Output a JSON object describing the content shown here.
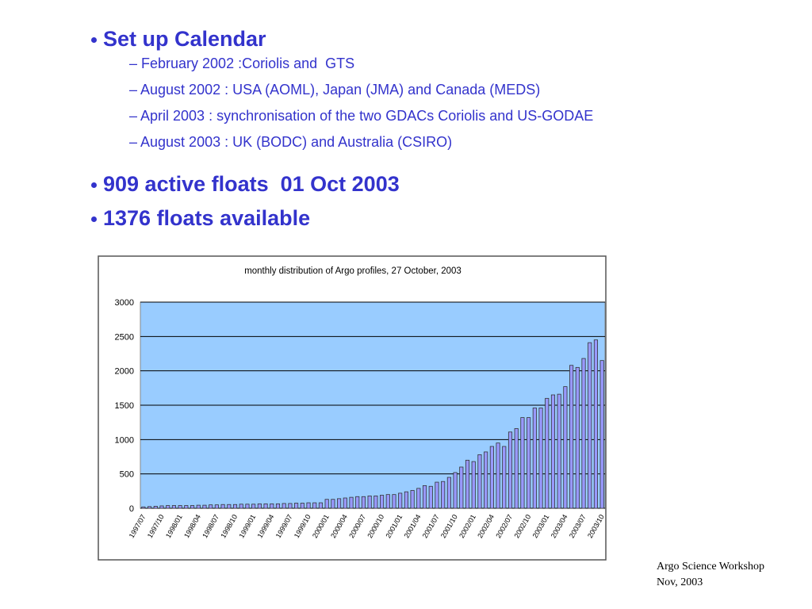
{
  "bullets": [
    {
      "text": "Set up Calendar",
      "sub": [
        "– February 2002 :Coriolis and  GTS",
        "– August 2002 : USA (AOML), Japan (JMA) and Canada (MEDS)",
        "– April 2003 : synchronisation of the two GDACs Coriolis and US-GODAE",
        "– August 2003 : UK (BODC) and Australia (CSIRO)"
      ]
    },
    {
      "text": "909 active floats  01 Oct 2003",
      "sub": []
    },
    {
      "text": "1376 floats available",
      "sub": []
    }
  ],
  "footer": [
    "Argo Science Workshop",
    "Nov, 2003"
  ],
  "chart_data": {
    "type": "bar",
    "title": "monthly distribution of Argo profiles, 27 October, 2003",
    "categories": [
      "1997/07",
      null,
      null,
      "1997/10",
      null,
      null,
      "1998/01",
      null,
      null,
      "1998/04",
      null,
      null,
      "1998/07",
      null,
      null,
      "1998/10",
      null,
      null,
      "1999/01",
      null,
      null,
      "1999/04",
      null,
      null,
      "1999/07",
      null,
      null,
      "1999/10",
      null,
      null,
      "2000/01",
      null,
      null,
      "2000/04",
      null,
      null,
      "2000/07",
      null,
      null,
      "2000/10",
      null,
      null,
      "2001/01",
      null,
      null,
      "2001/04",
      null,
      null,
      "2001/07",
      null,
      null,
      "2001/10",
      null,
      null,
      "2002/01",
      null,
      null,
      "2002/04",
      null,
      null,
      "2002/07",
      null,
      null,
      "2002/10",
      null,
      null,
      "2003/01",
      null,
      null,
      "2003/04",
      null,
      null,
      "2003/07",
      null,
      null,
      "2003/10"
    ],
    "values": [
      20,
      25,
      30,
      35,
      40,
      40,
      40,
      40,
      40,
      45,
      45,
      50,
      50,
      55,
      55,
      55,
      60,
      60,
      60,
      65,
      65,
      65,
      65,
      70,
      70,
      75,
      75,
      80,
      80,
      80,
      130,
      130,
      140,
      150,
      160,
      170,
      170,
      180,
      180,
      190,
      200,
      200,
      220,
      240,
      260,
      290,
      330,
      320,
      380,
      390,
      450,
      520,
      600,
      700,
      680,
      780,
      820,
      900,
      950,
      900,
      1110,
      1160,
      1320,
      1320,
      1460,
      1460,
      1600,
      1650,
      1660,
      1770,
      2080,
      2050,
      2180,
      2410,
      2450,
      2150
    ],
    "color": "#9999ff",
    "plot_background": "#99ccff",
    "ylim": [
      0,
      3000
    ],
    "yticks": [
      0,
      500,
      1000,
      1500,
      2000,
      2500,
      3000
    ],
    "grid": true
  }
}
